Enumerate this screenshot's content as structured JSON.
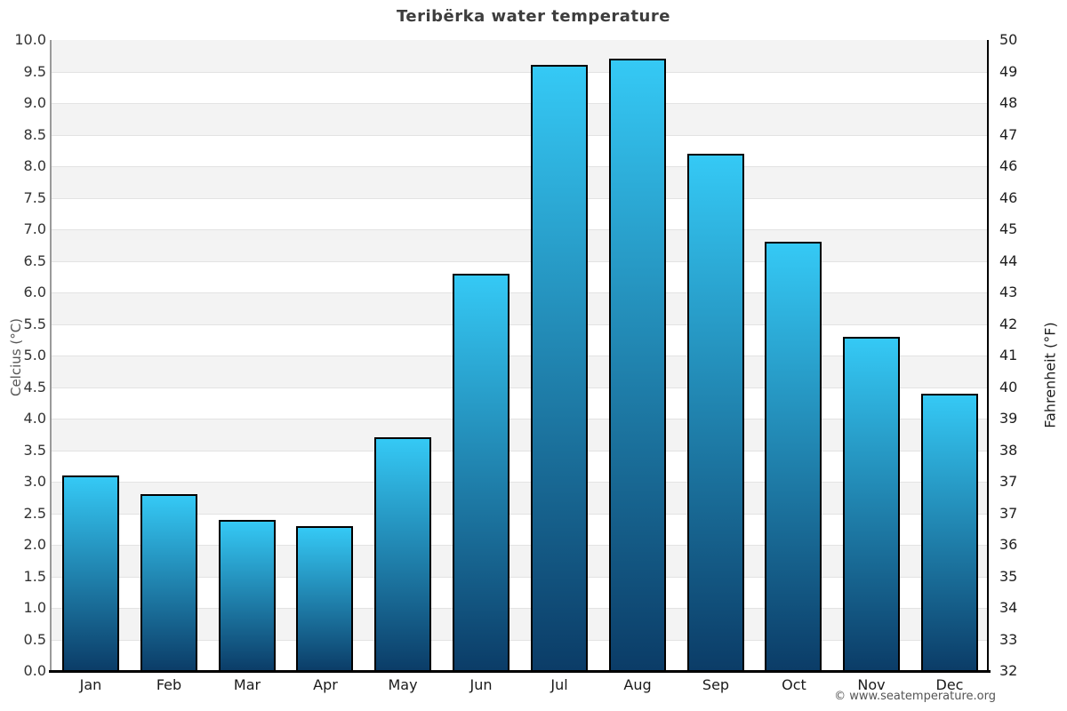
{
  "chart_data": {
    "type": "bar",
    "title": "Teribërka water temperature",
    "xlabel": "",
    "ylabel": "Celcius (°C)",
    "y2label": "Fahrenheit (°F)",
    "categories": [
      "Jan",
      "Feb",
      "Mar",
      "Apr",
      "May",
      "Jun",
      "Jul",
      "Aug",
      "Sep",
      "Oct",
      "Nov",
      "Dec"
    ],
    "values": [
      3.1,
      2.8,
      2.4,
      2.3,
      3.7,
      6.3,
      9.6,
      9.7,
      8.2,
      6.8,
      5.3,
      4.4
    ],
    "value_unit": "°C",
    "ylim": [
      0,
      10
    ],
    "ytick_step": 0.5,
    "yticks_left": [
      "10.0",
      "9.5",
      "9.0",
      "8.5",
      "8.0",
      "7.5",
      "7.0",
      "6.5",
      "6.0",
      "5.5",
      "5.0",
      "4.5",
      "4.0",
      "3.5",
      "3.0",
      "2.5",
      "2.0",
      "1.5",
      "1.0",
      "0.5",
      "0.0"
    ],
    "yticks_right": [
      "50",
      "49",
      "48",
      "47",
      "46",
      "46",
      "45",
      "44",
      "43",
      "42",
      "41",
      "40",
      "39",
      "38",
      "37",
      "37",
      "36",
      "35",
      "34",
      "33",
      "32"
    ],
    "grid": "alternating-horizontal-bands",
    "legend": "none",
    "colors": {
      "bar_top": "#35c9f5",
      "bar_bottom": "#0b3c67",
      "bar_border": "#000000",
      "band_gray": "#f3f3f3",
      "band_white": "#ffffff",
      "gridline": "#e3e3e3",
      "title": "#3d3d3d"
    }
  },
  "footer": {
    "copyright": "© www.seatemperature.org"
  }
}
